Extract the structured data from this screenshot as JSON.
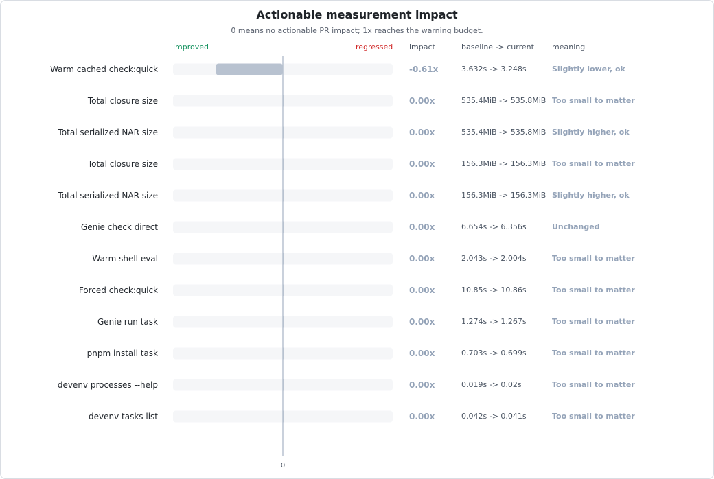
{
  "chart_data": {
    "type": "bar",
    "orientation": "horizontal",
    "title": "Actionable measurement impact",
    "subtitle": "0 means no actionable PR impact; 1x reaches the warning budget.",
    "left_direction_label": "improved",
    "right_direction_label": "regressed",
    "column_headers": {
      "impact": "impact",
      "baseline": "baseline -> current",
      "meaning": "meaning"
    },
    "zero_tick_label": "0",
    "xlim": [
      -1,
      1
    ],
    "colors": {
      "bar": "#b8c2d0",
      "track": "#f5f6f8",
      "axis": "#b8c2d0",
      "improved": "#15925f",
      "regressed": "#d12a2a",
      "neutral": "#94a3b8"
    },
    "rows": [
      {
        "name": "Warm cached check:quick",
        "value": -0.61,
        "impact": "-0.61x",
        "delta": "3.632s -> 3.248s",
        "meaning": "Slightly lower, ok"
      },
      {
        "name": "Total closure size",
        "value": 0,
        "impact": "0.00x",
        "delta": "535.4MiB -> 535.8MiB",
        "meaning": "Too small to matter"
      },
      {
        "name": "Total serialized NAR size",
        "value": 0,
        "impact": "0.00x",
        "delta": "535.4MiB -> 535.8MiB",
        "meaning": "Slightly higher, ok"
      },
      {
        "name": "Total closure size",
        "value": 0,
        "impact": "0.00x",
        "delta": "156.3MiB -> 156.3MiB",
        "meaning": "Too small to matter"
      },
      {
        "name": "Total serialized NAR size",
        "value": 0,
        "impact": "0.00x",
        "delta": "156.3MiB -> 156.3MiB",
        "meaning": "Slightly higher, ok"
      },
      {
        "name": "Genie check direct",
        "value": 0,
        "impact": "0.00x",
        "delta": "6.654s -> 6.356s",
        "meaning": "Unchanged"
      },
      {
        "name": "Warm shell eval",
        "value": 0,
        "impact": "0.00x",
        "delta": "2.043s -> 2.004s",
        "meaning": "Too small to matter"
      },
      {
        "name": "Forced check:quick",
        "value": 0,
        "impact": "0.00x",
        "delta": "10.85s -> 10.86s",
        "meaning": "Too small to matter"
      },
      {
        "name": "Genie run task",
        "value": 0,
        "impact": "0.00x",
        "delta": "1.274s -> 1.267s",
        "meaning": "Too small to matter"
      },
      {
        "name": "pnpm install task",
        "value": 0,
        "impact": "0.00x",
        "delta": "0.703s -> 0.699s",
        "meaning": "Too small to matter"
      },
      {
        "name": "devenv processes --help",
        "value": 0,
        "impact": "0.00x",
        "delta": "0.019s -> 0.02s",
        "meaning": "Too small to matter"
      },
      {
        "name": "devenv tasks list",
        "value": 0,
        "impact": "0.00x",
        "delta": "0.042s -> 0.041s",
        "meaning": "Too small to matter"
      }
    ]
  }
}
